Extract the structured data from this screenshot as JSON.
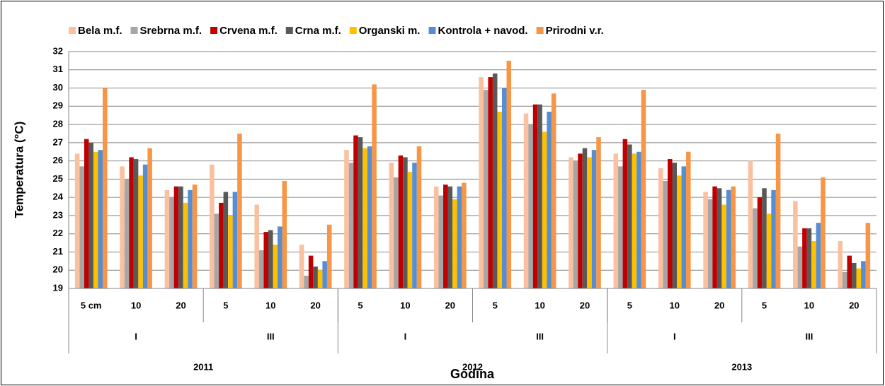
{
  "chart_data": {
    "type": "bar",
    "y_label": "Temperatura (°C)",
    "x_label": "Godina",
    "categories": [
      "5 cm",
      "10",
      "20",
      "5",
      "10",
      "20",
      "5",
      "10",
      "20",
      "5",
      "10",
      "20",
      "5",
      "10",
      "20",
      "5",
      "10",
      "20"
    ],
    "subgroups": [
      "I",
      "III",
      "I",
      "III",
      "I",
      "III"
    ],
    "groups": [
      "2011",
      "2012",
      "2013"
    ],
    "ylim": [
      19,
      32
    ],
    "yticks": [
      19,
      20,
      21,
      22,
      23,
      24,
      25,
      26,
      27,
      28,
      29,
      30,
      31,
      32
    ],
    "grid": true,
    "legend": "top",
    "series": [
      {
        "name": "Bela m.f.",
        "color": "#fac09f",
        "values": [
          26.4,
          25.7,
          24.4,
          25.8,
          23.6,
          21.4,
          26.6,
          25.9,
          24.6,
          30.6,
          28.6,
          26.2,
          26.4,
          25.6,
          24.3,
          26.0,
          23.8,
          21.6
        ]
      },
      {
        "name": "Srebrna m.f.",
        "color": "#a6a6a6",
        "values": [
          25.7,
          25.0,
          24.0,
          23.1,
          21.1,
          19.7,
          25.9,
          25.1,
          24.1,
          29.9,
          28.0,
          26.0,
          25.7,
          24.9,
          23.9,
          23.4,
          21.3,
          19.9
        ]
      },
      {
        "name": "Crvena m.f.",
        "color": "#c00000",
        "values": [
          27.2,
          26.2,
          24.6,
          23.7,
          22.1,
          20.8,
          27.4,
          26.3,
          24.7,
          30.6,
          29.1,
          26.4,
          27.2,
          26.1,
          24.6,
          24.0,
          22.3,
          20.8
        ]
      },
      {
        "name": "Crna m.f.",
        "color": "#595959",
        "values": [
          27.0,
          26.1,
          24.6,
          24.3,
          22.2,
          20.2,
          27.3,
          26.2,
          24.6,
          30.8,
          29.1,
          26.7,
          26.9,
          25.9,
          24.5,
          24.5,
          22.3,
          20.4
        ]
      },
      {
        "name": "Organski m.",
        "color": "#ffc000",
        "values": [
          26.5,
          25.2,
          23.7,
          23.0,
          21.4,
          20.0,
          26.7,
          25.4,
          23.9,
          28.7,
          27.6,
          26.2,
          26.4,
          25.2,
          23.6,
          23.1,
          21.6,
          20.1
        ]
      },
      {
        "name": "Kontrola + navod.",
        "color": "#558ed5",
        "values": [
          26.6,
          25.8,
          24.4,
          24.3,
          22.4,
          20.5,
          26.8,
          25.9,
          24.6,
          30.0,
          28.7,
          26.6,
          26.5,
          25.7,
          24.4,
          24.4,
          22.6,
          20.5
        ]
      },
      {
        "name": "Prirodni v.r.",
        "color": "#f79646",
        "values": [
          30.0,
          26.7,
          24.7,
          27.5,
          24.9,
          22.5,
          30.2,
          26.8,
          24.8,
          31.5,
          29.7,
          27.3,
          29.9,
          26.5,
          24.6,
          27.5,
          25.1,
          22.6
        ]
      }
    ]
  }
}
